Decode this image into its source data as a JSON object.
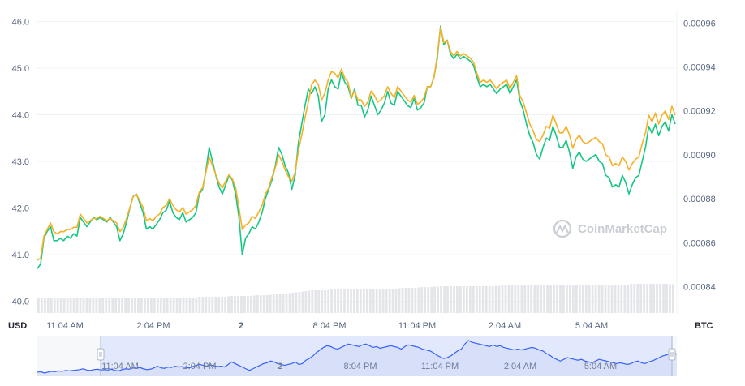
{
  "chart_data": {
    "type": "line",
    "left_axis": {
      "unit": "USD",
      "ticks": [
        "40.0",
        "41.0",
        "42.0",
        "43.0",
        "44.0",
        "45.0",
        "46.0"
      ],
      "range": [
        39.75,
        46.25
      ]
    },
    "right_axis": {
      "unit": "BTC",
      "ticks": [
        "0.00084",
        "0.00086",
        "0.00088",
        "0.00090",
        "0.00092",
        "0.00094",
        "0.00096"
      ],
      "range": [
        0.000828,
        0.000966
      ]
    },
    "x_ticks": [
      "11:04 AM",
      "2:04 PM",
      "2",
      "8:04 PM",
      "11:04 PM",
      "2:04 AM",
      "5:04 AM"
    ],
    "navigator_ticks": [
      "11:04 AM",
      "2:04 PM",
      "2",
      "8:04 PM",
      "11:04 PM",
      "2:04 AM",
      "5:04 AM"
    ],
    "watermark": "CoinMarketCap",
    "colors": {
      "usd_line": "#16c784",
      "btc_line": "#f5b025",
      "volume_bars": "#e3e5e9",
      "navigator_line": "#3861fb",
      "navigator_fill": "#dfe6fb",
      "grid": "#eff2f5"
    },
    "series": [
      {
        "key": "usd",
        "axis": "left",
        "values": [
          40.7,
          40.8,
          41.35,
          41.5,
          41.6,
          41.3,
          41.3,
          41.35,
          41.3,
          41.4,
          41.35,
          41.45,
          41.4,
          41.8,
          41.7,
          41.6,
          41.7,
          41.8,
          41.75,
          41.8,
          41.75,
          41.7,
          41.8,
          41.7,
          41.6,
          41.3,
          41.45,
          41.7,
          42.0,
          42.25,
          42.3,
          42.1,
          41.9,
          41.55,
          41.6,
          41.55,
          41.65,
          41.75,
          41.9,
          41.95,
          42.15,
          41.9,
          41.8,
          41.75,
          41.9,
          41.7,
          41.75,
          41.8,
          41.9,
          42.3,
          42.4,
          42.8,
          43.3,
          43.0,
          42.7,
          42.45,
          42.3,
          42.5,
          42.7,
          42.6,
          42.3,
          41.8,
          41.0,
          41.35,
          41.45,
          41.6,
          41.55,
          41.7,
          41.9,
          42.2,
          42.4,
          42.6,
          42.9,
          43.3,
          43.15,
          42.9,
          42.75,
          42.4,
          42.7,
          43.4,
          43.8,
          44.2,
          44.55,
          44.45,
          44.6,
          44.4,
          43.85,
          44.0,
          44.55,
          44.75,
          44.6,
          44.55,
          44.9,
          44.7,
          44.6,
          44.35,
          44.55,
          44.2,
          44.2,
          43.95,
          44.1,
          44.4,
          44.2,
          44.0,
          44.1,
          44.25,
          44.5,
          44.25,
          44.2,
          44.5,
          44.4,
          44.3,
          44.2,
          44.15,
          44.35,
          44.1,
          44.15,
          44.25,
          44.6,
          44.6,
          44.8,
          45.2,
          45.9,
          45.5,
          45.6,
          45.3,
          45.2,
          45.3,
          45.2,
          45.25,
          45.2,
          45.15,
          45.05,
          44.8,
          44.6,
          44.65,
          44.6,
          44.65,
          44.55,
          44.45,
          44.55,
          44.6,
          44.65,
          44.45,
          44.6,
          44.75,
          44.3,
          44.1,
          43.8,
          43.55,
          43.4,
          43.15,
          43.05,
          43.3,
          43.5,
          43.45,
          43.75,
          43.55,
          43.3,
          43.3,
          43.45,
          43.2,
          42.85,
          43.1,
          43.2,
          43.05,
          43.0,
          43.05,
          43.1,
          43.15,
          43.0,
          42.95,
          42.7,
          42.65,
          42.45,
          42.5,
          42.45,
          42.7,
          42.55,
          42.3,
          42.5,
          42.65,
          42.7,
          43.0,
          43.3,
          43.75,
          43.6,
          43.8,
          43.55,
          43.75,
          43.85,
          43.65,
          44.0,
          43.8
        ],
        "name": ""
      },
      {
        "key": "btc",
        "axis": "right",
        "values": [
          0.000852,
          0.000853,
          0.000863,
          0.000866,
          0.000869,
          0.000865,
          0.000864,
          0.000865,
          0.000865,
          0.000866,
          0.000866,
          0.000867,
          0.000867,
          0.000873,
          0.000871,
          0.000869,
          0.00087,
          0.000871,
          0.000871,
          0.000872,
          0.000871,
          0.00087,
          0.000871,
          0.00087,
          0.000869,
          0.000865,
          0.000867,
          0.000871,
          0.000876,
          0.000881,
          0.000882,
          0.000879,
          0.000876,
          0.00087,
          0.000871,
          0.00087,
          0.000872,
          0.000873,
          0.000876,
          0.000877,
          0.00088,
          0.000877,
          0.000875,
          0.000874,
          0.000876,
          0.000873,
          0.000874,
          0.000875,
          0.000877,
          0.000883,
          0.000885,
          0.000892,
          0.000899,
          0.000895,
          0.000891,
          0.000887,
          0.000885,
          0.000888,
          0.000891,
          0.000889,
          0.000885,
          0.000876,
          0.000866,
          0.000868,
          0.000869,
          0.000872,
          0.000871,
          0.000874,
          0.000877,
          0.000882,
          0.000885,
          0.00089,
          0.000894,
          0.0009,
          0.000897,
          0.000893,
          0.00089,
          0.000888,
          0.000892,
          0.000902,
          0.000909,
          0.000917,
          0.000924,
          0.000932,
          0.000934,
          0.000932,
          0.000925,
          0.000928,
          0.000934,
          0.000938,
          0.000937,
          0.000935,
          0.000939,
          0.000935,
          0.000933,
          0.000926,
          0.000929,
          0.000925,
          0.000925,
          0.000922,
          0.000924,
          0.000929,
          0.000927,
          0.000924,
          0.000925,
          0.000927,
          0.000931,
          0.000928,
          0.000926,
          0.000931,
          0.000929,
          0.000927,
          0.000925,
          0.000924,
          0.000927,
          0.000923,
          0.000924,
          0.000926,
          0.000931,
          0.000931,
          0.000935,
          0.000945,
          0.000958,
          0.000951,
          0.000952,
          0.000947,
          0.000945,
          0.000947,
          0.000945,
          0.000946,
          0.000945,
          0.000944,
          0.000942,
          0.000937,
          0.000933,
          0.000934,
          0.000933,
          0.000934,
          0.000932,
          0.00093,
          0.000932,
          0.000933,
          0.000934,
          0.00093,
          0.000933,
          0.000936,
          0.000927,
          0.000924,
          0.000919,
          0.000914,
          0.000911,
          0.000907,
          0.000906,
          0.000909,
          0.000913,
          0.000912,
          0.000918,
          0.000914,
          0.00091,
          0.00091,
          0.000913,
          0.000909,
          0.000903,
          0.000907,
          0.000909,
          0.000906,
          0.000905,
          0.000906,
          0.000907,
          0.000908,
          0.000906,
          0.000905,
          0.0009,
          0.000899,
          0.000895,
          0.000896,
          0.000895,
          0.000899,
          0.000897,
          0.000893,
          0.000896,
          0.000898,
          0.000899,
          0.000905,
          0.00091,
          0.000918,
          0.000915,
          0.000919,
          0.000914,
          0.000918,
          0.00092,
          0.000916,
          0.000922,
          0.000918
        ],
        "name": ""
      }
    ],
    "volume": [
      0.18,
      0.18,
      0.18,
      0.18,
      0.18,
      0.18,
      0.18,
      0.18,
      0.18,
      0.18,
      0.18,
      0.18,
      0.18,
      0.18,
      0.18,
      0.18,
      0.18,
      0.18,
      0.18,
      0.18,
      0.18,
      0.18,
      0.18,
      0.18,
      0.18,
      0.18,
      0.18,
      0.18,
      0.18,
      0.18,
      0.18,
      0.18,
      0.18,
      0.18,
      0.18,
      0.18,
      0.18,
      0.18,
      0.18,
      0.18,
      0.18,
      0.18,
      0.18,
      0.18,
      0.18,
      0.18,
      0.18,
      0.18,
      0.185,
      0.19,
      0.2,
      0.2,
      0.2,
      0.2,
      0.2,
      0.2,
      0.2,
      0.2,
      0.2,
      0.205,
      0.21,
      0.21,
      0.21,
      0.21,
      0.21,
      0.21,
      0.21,
      0.215,
      0.22,
      0.22,
      0.22,
      0.22,
      0.225,
      0.23,
      0.23,
      0.235,
      0.24,
      0.24,
      0.245,
      0.25,
      0.255,
      0.26,
      0.265,
      0.27,
      0.275,
      0.28,
      0.28,
      0.28,
      0.28,
      0.28,
      0.285,
      0.29,
      0.29,
      0.29,
      0.29,
      0.29,
      0.29,
      0.295,
      0.295,
      0.295,
      0.3,
      0.3,
      0.3,
      0.3,
      0.3,
      0.3,
      0.3,
      0.3,
      0.3,
      0.3,
      0.3,
      0.3,
      0.305,
      0.31,
      0.31,
      0.31,
      0.31,
      0.31,
      0.315,
      0.32,
      0.32,
      0.32,
      0.32,
      0.325,
      0.325,
      0.33,
      0.33,
      0.33,
      0.33,
      0.33,
      0.33,
      0.33,
      0.33,
      0.33,
      0.33,
      0.33,
      0.33,
      0.33,
      0.33,
      0.33,
      0.33,
      0.33,
      0.335,
      0.335,
      0.34,
      0.34,
      0.34,
      0.34,
      0.34,
      0.34,
      0.34,
      0.34,
      0.34,
      0.34,
      0.34,
      0.34,
      0.34,
      0.34,
      0.34,
      0.34,
      0.345,
      0.345,
      0.35,
      0.35,
      0.35,
      0.35,
      0.35,
      0.35,
      0.35,
      0.35,
      0.35,
      0.35,
      0.35,
      0.35,
      0.35,
      0.35,
      0.35,
      0.35,
      0.35,
      0.35,
      0.35,
      0.35,
      0.35,
      0.35,
      0.36,
      0.36,
      0.36,
      0.36,
      0.36,
      0.36,
      0.36,
      0.36,
      0.36,
      0.36,
      0.36,
      0.36,
      0.355,
      0.355
    ],
    "navigator": [
      0.3,
      0.35,
      0.2,
      0.3,
      0.4,
      0.35,
      0.45,
      0.4,
      0.5,
      0.45,
      0.5,
      0.55,
      0.6,
      0.7,
      0.55,
      0.5,
      0.6,
      0.65,
      0.55,
      0.6,
      0.55,
      0.65,
      0.5,
      0.45,
      0.6,
      0.7,
      0.65,
      0.8,
      0.75,
      0.85,
      0.7,
      0.6,
      0.65,
      0.8,
      1.0,
      0.8,
      0.75,
      0.9,
      0.85,
      1.0,
      0.9,
      0.95,
      0.85,
      0.8,
      0.95,
      1.1,
      1.2,
      1.1,
      1.0,
      1.15,
      1.05,
      0.95,
      1.0,
      0.9,
      1.2,
      1.5,
      1.3,
      1.1,
      0.9,
      0.7,
      0.5,
      0.7,
      0.9,
      1.1,
      1.3,
      1.4,
      1.6,
      1.5,
      1.3,
      1.2,
      1.1,
      1.2,
      1.3,
      1.5,
      1.2,
      1.3,
      1.7,
      1.9,
      2.2,
      2.6,
      2.9,
      3.2,
      3.4,
      3.3,
      3.1,
      3.0,
      3.2,
      3.4,
      3.6,
      3.5,
      3.4,
      3.3,
      3.5,
      3.6,
      3.4,
      3.2,
      3.3,
      3.1,
      3.2,
      3.3,
      3.4,
      3.3,
      3.2,
      3.0,
      3.3,
      3.5,
      3.4,
      3.3,
      3.2,
      3.0,
      2.9,
      2.8,
      2.6,
      2.3,
      2.1,
      1.9,
      2.0,
      2.2,
      2.5,
      2.8,
      3.0,
      3.6,
      4.0,
      3.8,
      3.7,
      3.6,
      3.5,
      3.4,
      3.3,
      3.5,
      3.3,
      3.4,
      3.2,
      3.1,
      3.0,
      2.9,
      3.0,
      2.9,
      3.0,
      3.1,
      3.2,
      3.1,
      2.9,
      2.8,
      2.5,
      2.3,
      2.0,
      1.8,
      1.6,
      1.8,
      2.0,
      1.9,
      1.8,
      1.7,
      1.8,
      1.6,
      1.5,
      1.4,
      1.6,
      1.8,
      1.7,
      1.6,
      1.5,
      1.4,
      1.3,
      1.4,
      1.3,
      1.2,
      1.3,
      1.5,
      1.6,
      1.4,
      1.3,
      1.5,
      1.6,
      1.8,
      2.0,
      2.2,
      2.3,
      2.5,
      2.6,
      2.4
    ]
  }
}
